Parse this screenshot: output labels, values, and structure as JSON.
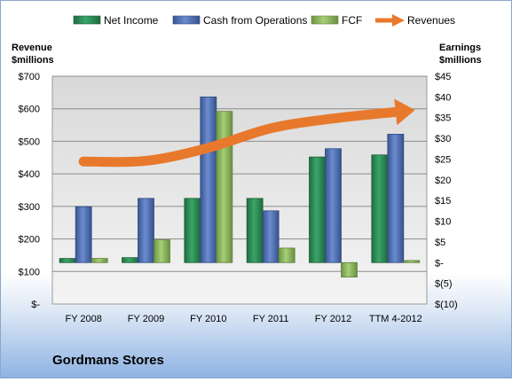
{
  "company_name": "Gordmans Stores",
  "legend": {
    "net_income": "Net Income",
    "cash_from_operations": "Cash from Operations",
    "fcf": "FCF",
    "revenues": "Revenues"
  },
  "colors": {
    "net_income": "#2e8b57",
    "cash_from_operations": "#4f6fb0",
    "fcf": "#8db660",
    "revenues": "#e8792c"
  },
  "chart_data": {
    "type": "bar",
    "categories": [
      "FY 2008",
      "FY 2009",
      "FY 2010",
      "FY 2011",
      "FY 2012",
      "TTM 4-2012"
    ],
    "left_axis": {
      "title_line1": "Revenue",
      "title_line2": "$millions",
      "ticks": [
        "$-",
        "$100",
        "$200",
        "$300",
        "$400",
        "$500",
        "$600",
        "$700"
      ],
      "ylim": [
        0,
        700
      ]
    },
    "right_axis": {
      "title_line1": "Earnings",
      "title_line2": "$millions",
      "ticks": [
        "$(10)",
        "$(5)",
        "$-",
        "$5",
        "$10",
        "$15",
        "$20",
        "$25",
        "$30",
        "$35",
        "$40",
        "$45"
      ],
      "ylim": [
        -10,
        45
      ]
    },
    "series": [
      {
        "name": "Net Income",
        "axis": "right",
        "values": [
          1,
          1.2,
          15.5,
          15.5,
          25.5,
          26
        ]
      },
      {
        "name": "Cash from Operations",
        "axis": "right",
        "values": [
          13.5,
          15.5,
          40,
          12.5,
          27.5,
          31
        ]
      },
      {
        "name": "FCF",
        "axis": "right",
        "values": [
          1,
          5.5,
          36.5,
          3.5,
          -3.5,
          0.5
        ]
      }
    ],
    "revenues_trend": {
      "name": "Revenues",
      "axis": "left",
      "style": "curved arrow",
      "values": [
        438,
        440,
        480,
        540,
        570,
        590
      ]
    },
    "grid": true,
    "legend_position": "top"
  }
}
